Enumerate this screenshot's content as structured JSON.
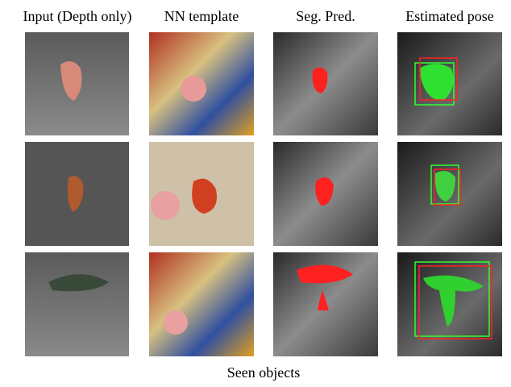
{
  "columns": [
    "Input (Depth only)",
    "NN template",
    "Seg. Pred.",
    "Estimated pose"
  ],
  "caption": "Seen objects"
}
